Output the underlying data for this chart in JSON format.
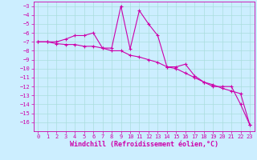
{
  "xlabel": "Windchill (Refroidissement éolien,°C)",
  "background_color": "#cceeff",
  "line_color": "#cc00aa",
  "grid_color": "#aadddd",
  "x_values": [
    0,
    1,
    2,
    3,
    4,
    5,
    6,
    7,
    8,
    9,
    10,
    11,
    12,
    13,
    14,
    15,
    16,
    17,
    18,
    19,
    20,
    21,
    22,
    23
  ],
  "line1_y": [
    -7.0,
    -7.0,
    -7.0,
    -6.7,
    -6.3,
    -6.3,
    -6.0,
    -7.7,
    -7.7,
    -3.0,
    -7.8,
    -3.5,
    -5.0,
    -6.3,
    -9.8,
    -9.8,
    -9.5,
    -10.8,
    -11.5,
    -12.0,
    -12.0,
    -12.0,
    -14.0,
    -16.3
  ],
  "line2_y": [
    -7.0,
    -7.0,
    -7.2,
    -7.3,
    -7.3,
    -7.5,
    -7.5,
    -7.7,
    -8.0,
    -8.0,
    -8.5,
    -8.7,
    -9.0,
    -9.3,
    -9.8,
    -10.0,
    -10.5,
    -11.0,
    -11.5,
    -11.8,
    -12.2,
    -12.5,
    -12.8,
    -16.3
  ],
  "ylim": [
    -17.0,
    -2.5
  ],
  "xlim": [
    -0.5,
    23.5
  ],
  "yticks": [
    -3,
    -4,
    -5,
    -6,
    -7,
    -8,
    -9,
    -10,
    -11,
    -12,
    -13,
    -14,
    -15,
    -16
  ],
  "xticks": [
    0,
    1,
    2,
    3,
    4,
    5,
    6,
    7,
    8,
    9,
    10,
    11,
    12,
    13,
    14,
    15,
    16,
    17,
    18,
    19,
    20,
    21,
    22,
    23
  ],
  "tick_fontsize": 5.0,
  "label_fontsize": 6.0
}
